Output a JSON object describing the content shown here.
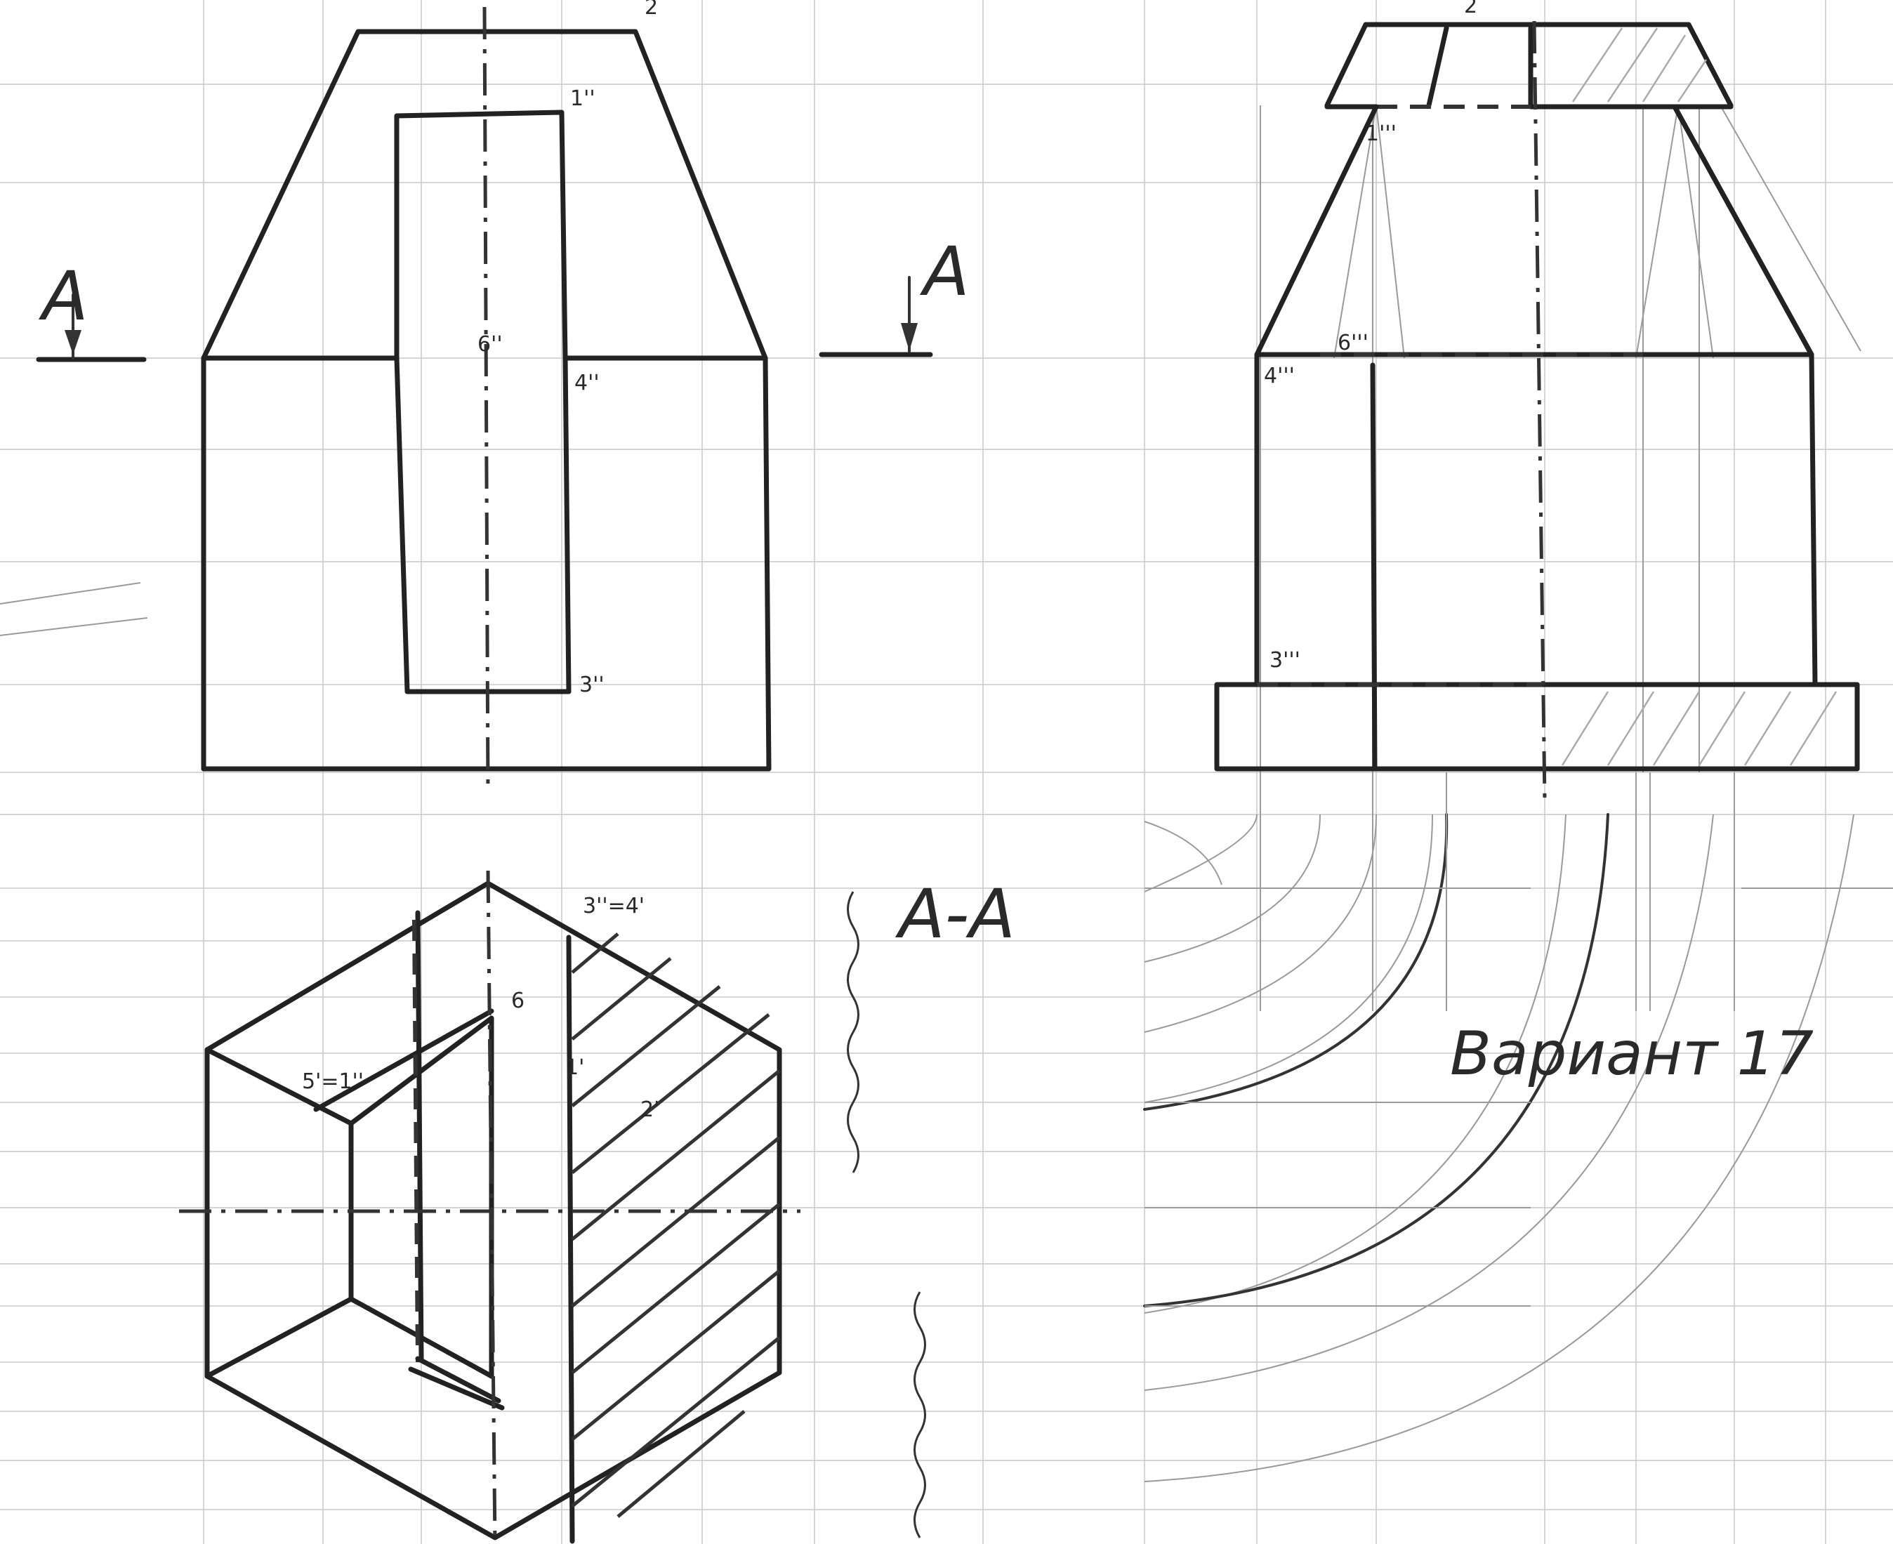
{
  "drawing": {
    "section_marks": {
      "left": "A",
      "right": "A"
    },
    "section_title": "A-A",
    "variant": "Вариант 17",
    "front_view_labels": {
      "p2": "2",
      "p1": "1''",
      "p6": "6''",
      "p4": "4''",
      "p3": "3''"
    },
    "side_view_labels": {
      "p2": "2",
      "p1": "1'''",
      "p6": "6'''",
      "p4": "4'''",
      "p3": "3'''"
    },
    "top_view_labels": {
      "p34": "3''=4'",
      "p5": "5'=1''",
      "p1": "1'",
      "p2": "2'",
      "p6": "6"
    }
  },
  "colors": {
    "ink": "#222222",
    "grid": "#c8c8c8",
    "construction": "#9a9a9a"
  }
}
